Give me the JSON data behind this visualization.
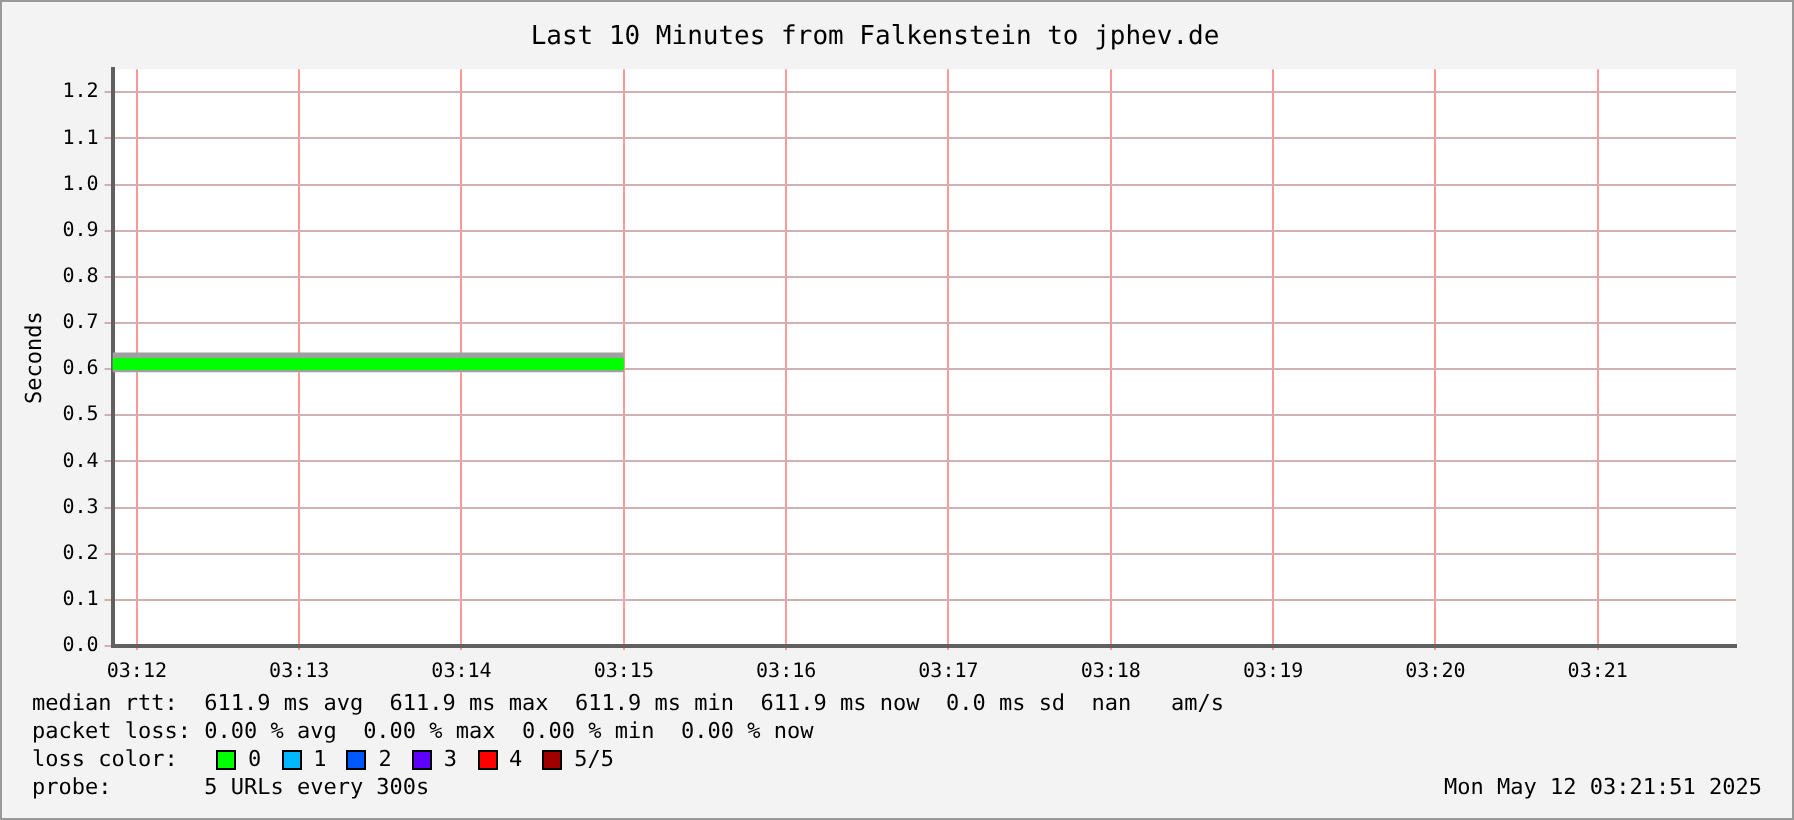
{
  "chart_data": {
    "type": "line",
    "title": "Last 10 Minutes from Falkenstein to jphev.de",
    "ylabel": "Seconds",
    "legend_title": "loss color:",
    "x": [
      3.1975,
      3.25
    ],
    "series": [
      {
        "name": "0",
        "color": "#00ff00",
        "values": [
          0.611,
          0.611
        ],
        "lower": [
          0.593,
          0.593
        ],
        "upper": [
          0.636,
          0.636
        ]
      },
      {
        "name": "1",
        "color": "#00b8ff",
        "values": [
          null,
          null
        ]
      },
      {
        "name": "2",
        "color": "#0059ff",
        "values": [
          null,
          null
        ]
      },
      {
        "name": "3",
        "color": "#5e00ff",
        "values": [
          null,
          null
        ]
      },
      {
        "name": "4",
        "color": "#ff0000",
        "values": [
          null,
          null
        ]
      },
      {
        "name": "5/5",
        "color": "#a10000",
        "values": [
          null,
          null
        ]
      }
    ],
    "xlim": [
      3.1975,
      3.3642
    ],
    "xticks": [
      {
        "value": 3.2,
        "label": "03:12"
      },
      {
        "value": 3.21667,
        "label": "03:13"
      },
      {
        "value": 3.23333,
        "label": "03:14"
      },
      {
        "value": 3.25,
        "label": "03:15"
      },
      {
        "value": 3.26667,
        "label": "03:16"
      },
      {
        "value": 3.28333,
        "label": "03:17"
      },
      {
        "value": 3.3,
        "label": "03:18"
      },
      {
        "value": 3.31667,
        "label": "03:19"
      },
      {
        "value": 3.33333,
        "label": "03:20"
      },
      {
        "value": 3.35,
        "label": "03:21"
      }
    ],
    "ylim": [
      0,
      1.25
    ],
    "yticks": [
      {
        "value": 0,
        "label": "0.0"
      },
      {
        "value": 0.1,
        "label": "0.1"
      },
      {
        "value": 0.2,
        "label": "0.2"
      },
      {
        "value": 0.3,
        "label": "0.3"
      },
      {
        "value": 0.4,
        "label": "0.4"
      },
      {
        "value": 0.5,
        "label": "0.5"
      },
      {
        "value": 0.6,
        "label": "0.6"
      },
      {
        "value": 0.7,
        "label": "0.7"
      },
      {
        "value": 0.8,
        "label": "0.8"
      },
      {
        "value": 0.9,
        "label": "0.9"
      },
      {
        "value": 1,
        "label": "1.0"
      },
      {
        "value": 1.1,
        "label": "1.1"
      },
      {
        "value": 1.2,
        "label": "1.2"
      }
    ],
    "grid": true,
    "legend": "bottom",
    "marker": "none",
    "line_style": "solid",
    "annotations": [
      "median rtt:  611.9 ms avg  611.9 ms max  611.9 ms min  611.9 ms now  0.0 ms sd  nan   am/s",
      "packet loss: 0.00 % avg  0.00 % max  0.00 % min  0.00 % now",
      "probe:       5 URLs every 300s",
      "Mon May 12 03:21:51 2025"
    ]
  }
}
